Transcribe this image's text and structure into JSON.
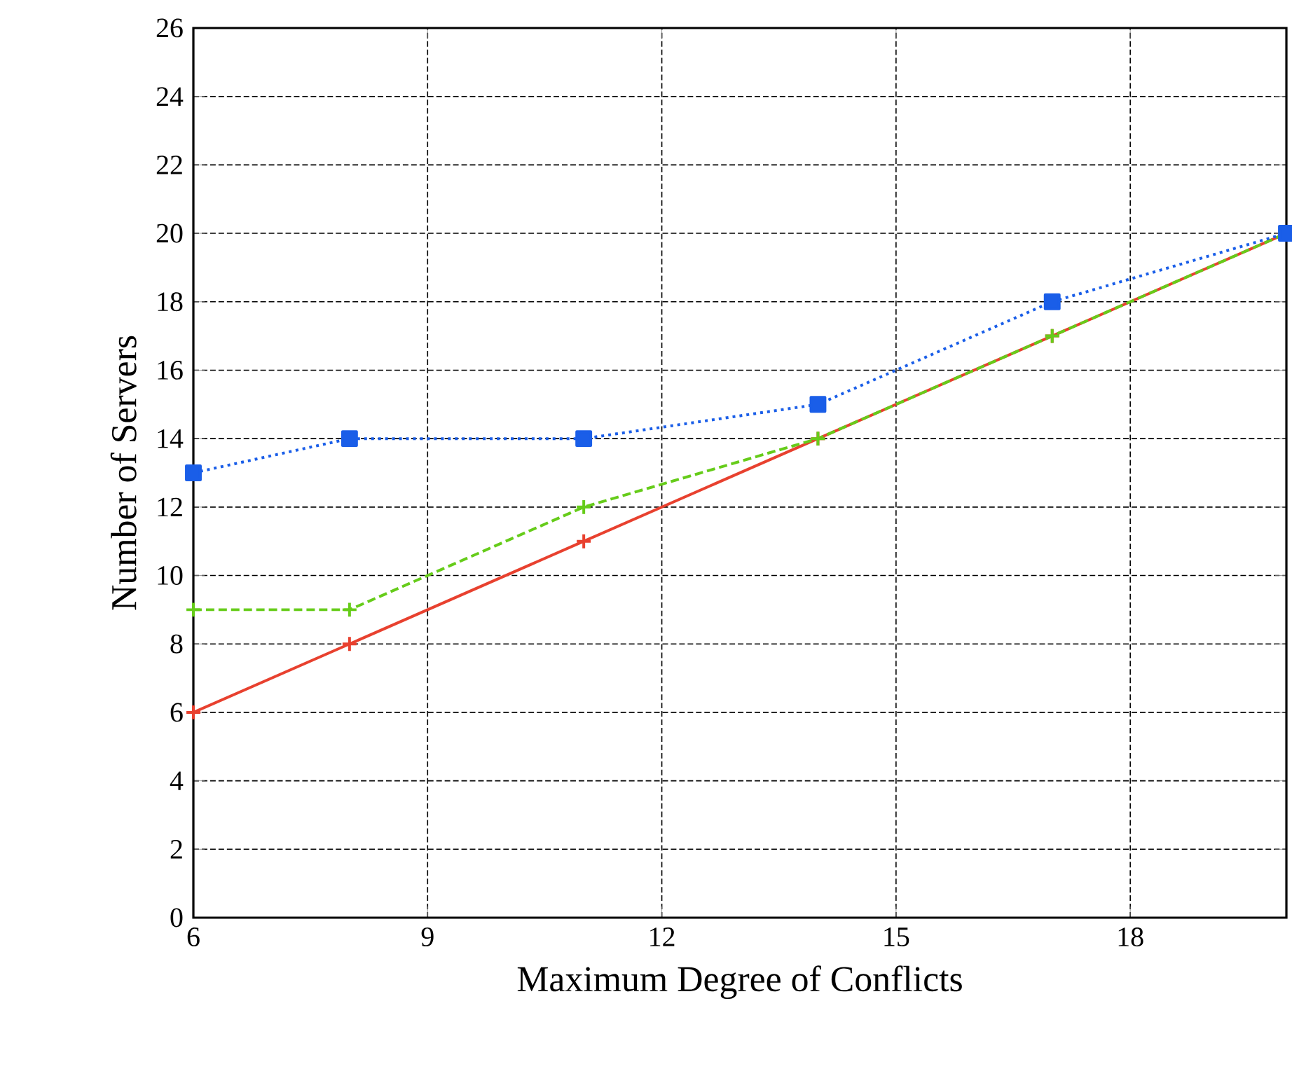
{
  "chart_data": {
    "type": "line",
    "xlabel": "Maximum Degree of Conflicts",
    "ylabel": "Number of Servers",
    "x": [
      6,
      8,
      11,
      14,
      17,
      20
    ],
    "series": [
      {
        "color": "#e8412f",
        "values": [
          6,
          8,
          11,
          14,
          17,
          20
        ],
        "line_style": "solid",
        "marker": "cross"
      },
      {
        "color": "#66cc1a",
        "values": [
          9,
          9,
          12,
          14,
          17,
          20
        ],
        "line_style": "dashed",
        "marker": "cross"
      },
      {
        "color": "#1a5ee8",
        "values": [
          13,
          14,
          14,
          15,
          18,
          20
        ],
        "line_style": "dotted",
        "marker": "square"
      }
    ],
    "xlim": [
      6,
      20
    ],
    "xticks": [
      6,
      9,
      12,
      15,
      18
    ],
    "ylim": [
      0,
      26
    ],
    "yticks": [
      0,
      2,
      4,
      6,
      8,
      10,
      12,
      14,
      16,
      18,
      20,
      22,
      24,
      26
    ],
    "grid": true
  }
}
